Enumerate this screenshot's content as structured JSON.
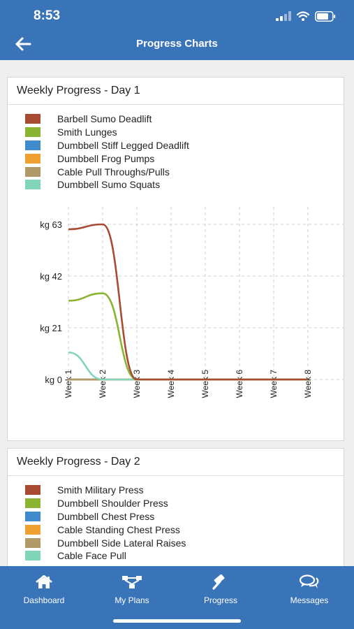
{
  "status": {
    "time": "8:53"
  },
  "header": {
    "title": "Progress Charts",
    "back_icon": "arrow-left-icon"
  },
  "card1": {
    "title": "Weekly Progress - Day 1",
    "legend": [
      {
        "label": "Barbell Sumo Deadlift",
        "color": "#a94a33"
      },
      {
        "label": "Smith Lunges",
        "color": "#8ab431"
      },
      {
        "label": "Dumbbell Stiff Legged Deadlift",
        "color": "#3f8bcc"
      },
      {
        "label": "Dumbbell Frog Pumps",
        "color": "#f0a030"
      },
      {
        "label": "Cable Pull Throughs/Pulls",
        "color": "#b09a6a"
      },
      {
        "label": "Dumbbell Sumo Squats",
        "color": "#82d6b8"
      }
    ]
  },
  "chart_data": {
    "type": "line",
    "x": [
      "Week 1",
      "Week 2",
      "Week 3",
      "Week 4",
      "Week 5",
      "Week 6",
      "Week 7",
      "Week 8"
    ],
    "yticks": [
      "kg 0",
      "kg 21",
      "kg 42",
      "kg 63"
    ],
    "ylim": [
      0,
      63
    ],
    "grid": true,
    "series": [
      {
        "name": "Barbell Sumo Deadlift",
        "color": "#a94a33",
        "values": [
          61,
          63,
          0,
          0,
          0,
          0,
          0,
          0
        ]
      },
      {
        "name": "Smith Lunges",
        "color": "#8ab431",
        "values": [
          32,
          35,
          0,
          0,
          0,
          0,
          0,
          0
        ]
      },
      {
        "name": "Dumbbell Stiff Legged Deadlift",
        "color": "#3f8bcc",
        "values": [
          0,
          0,
          0,
          0,
          0,
          0,
          0,
          0
        ]
      },
      {
        "name": "Dumbbell Frog Pumps",
        "color": "#f0a030",
        "values": [
          0,
          0,
          0,
          0,
          0,
          0,
          0,
          0
        ]
      },
      {
        "name": "Cable Pull Throughs/Pulls",
        "color": "#b09a6a",
        "values": [
          0,
          0,
          0,
          0,
          0,
          0,
          0,
          0
        ]
      },
      {
        "name": "Dumbbell Sumo Squats",
        "color": "#82d6b8",
        "values": [
          11,
          0,
          0,
          0,
          0,
          0,
          0,
          0
        ]
      }
    ]
  },
  "card2": {
    "title": "Weekly Progress - Day 2",
    "legend": [
      {
        "label": "Smith Military Press",
        "color": "#a94a33"
      },
      {
        "label": "Dumbbell Shoulder Press",
        "color": "#8ab431"
      },
      {
        "label": "Dumbbell Chest Press",
        "color": "#3f8bcc"
      },
      {
        "label": "Cable Standing Chest Press",
        "color": "#f0a030"
      },
      {
        "label": "Dumbbell Side Lateral Raises",
        "color": "#b09a6a"
      },
      {
        "label": "Cable Face Pull",
        "color": "#82d6b8"
      }
    ]
  },
  "tabs": [
    {
      "label": "Dashboard",
      "icon": "home-icon"
    },
    {
      "label": "My Plans",
      "icon": "sitemap-icon"
    },
    {
      "label": "Progress",
      "icon": "gavel-icon"
    },
    {
      "label": "Messages",
      "icon": "chat-bubbles-icon"
    }
  ]
}
